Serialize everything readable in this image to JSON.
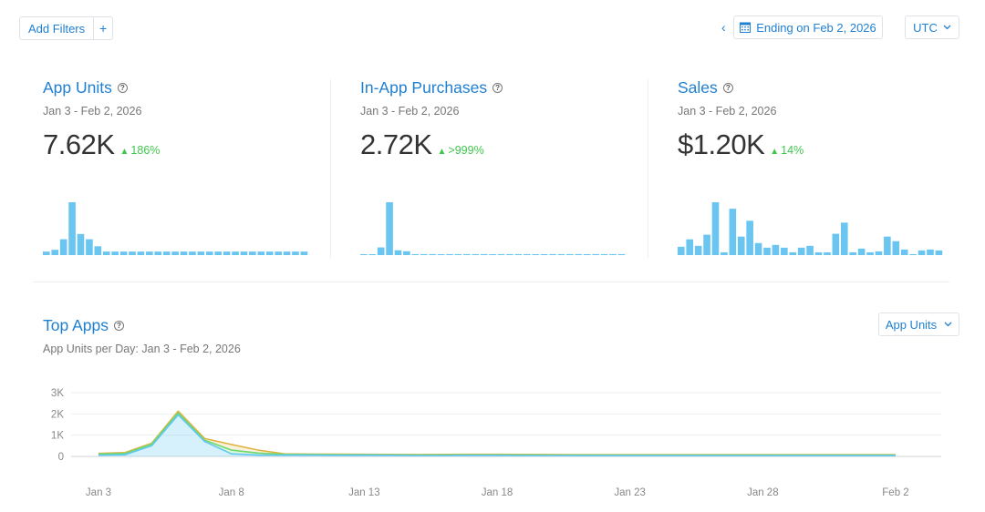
{
  "toolbar": {
    "add_filters": "Add Filters",
    "plus": "+",
    "prev": "‹",
    "date_range": "Ending on Feb 2, 2026",
    "timezone": "UTC"
  },
  "metrics": [
    {
      "title": "App Units",
      "range": "Jan 3 - Feb 2, 2026",
      "value": "7.62K",
      "delta": "186%"
    },
    {
      "title": "In-App Purchases",
      "range": "Jan 3 - Feb 2, 2026",
      "value": "2.72K",
      "delta": ">999%"
    },
    {
      "title": "Sales",
      "range": "Jan 3 - Feb 2, 2026",
      "value": "$1.20K",
      "delta": "14%"
    }
  ],
  "sparklines": {
    "app_units": [
      2,
      3,
      9,
      30,
      12,
      9,
      5,
      2,
      2,
      2,
      2,
      2,
      2,
      2,
      2,
      2,
      2,
      2,
      2,
      2,
      2,
      2,
      2,
      2,
      2,
      2,
      2,
      2,
      2,
      2,
      2
    ],
    "in_app_purchases": [
      0,
      0,
      8,
      55,
      5,
      4,
      1,
      1,
      1,
      1,
      1,
      1,
      1,
      1,
      1,
      1,
      1,
      1,
      1,
      1,
      1,
      1,
      1,
      1,
      1,
      1,
      1,
      1,
      1,
      1,
      1
    ],
    "sales": [
      9,
      17,
      10,
      22,
      57,
      3,
      50,
      20,
      37,
      13,
      8,
      11,
      8,
      3,
      8,
      10,
      3,
      3,
      23,
      35,
      3,
      7,
      3,
      4,
      20,
      15,
      6,
      1,
      5,
      6,
      5
    ]
  },
  "top_apps": {
    "title": "Top Apps",
    "subtitle": "App Units per Day: Jan 3 - Feb 2, 2026",
    "select_label": "App Units"
  },
  "chart_data": {
    "type": "area",
    "x": [
      "Jan 3",
      "Jan 4",
      "Jan 5",
      "Jan 6",
      "Jan 7",
      "Jan 8",
      "Jan 9",
      "Jan 10",
      "Jan 11",
      "Jan 12",
      "Jan 13",
      "Jan 14",
      "Jan 15",
      "Jan 16",
      "Jan 17",
      "Jan 18",
      "Jan 19",
      "Jan 20",
      "Jan 21",
      "Jan 22",
      "Jan 23",
      "Jan 24",
      "Jan 25",
      "Jan 26",
      "Jan 27",
      "Jan 28",
      "Jan 29",
      "Jan 30",
      "Jan 31",
      "Feb 1",
      "Feb 2"
    ],
    "xticks": [
      "Jan 3",
      "Jan 8",
      "Jan 13",
      "Jan 18",
      "Jan 23",
      "Jan 28",
      "Feb 2"
    ],
    "yticks": [
      "0",
      "1K",
      "2K",
      "3K"
    ],
    "ylim": [
      0,
      3000
    ],
    "series": [
      {
        "color": "#5ec8f2",
        "values": [
          60,
          80,
          500,
          1960,
          700,
          120,
          70,
          60,
          60,
          55,
          55,
          50,
          45,
          45,
          50,
          50,
          45,
          45,
          45,
          40,
          40,
          40,
          40,
          45,
          45,
          45,
          40,
          40,
          40,
          40,
          40
        ]
      },
      {
        "color": "#6fd86f",
        "values": [
          110,
          140,
          580,
          2050,
          760,
          300,
          160,
          100,
          90,
          85,
          80,
          75,
          70,
          70,
          75,
          75,
          70,
          65,
          65,
          60,
          60,
          60,
          60,
          65,
          65,
          65,
          60,
          60,
          60,
          60,
          60
        ]
      },
      {
        "color": "#e0b33f",
        "values": [
          140,
          180,
          620,
          2130,
          840,
          560,
          300,
          120,
          110,
          105,
          100,
          95,
          90,
          95,
          100,
          100,
          95,
          90,
          85,
          85,
          85,
          80,
          80,
          85,
          85,
          85,
          80,
          80,
          80,
          80,
          80
        ]
      }
    ]
  }
}
